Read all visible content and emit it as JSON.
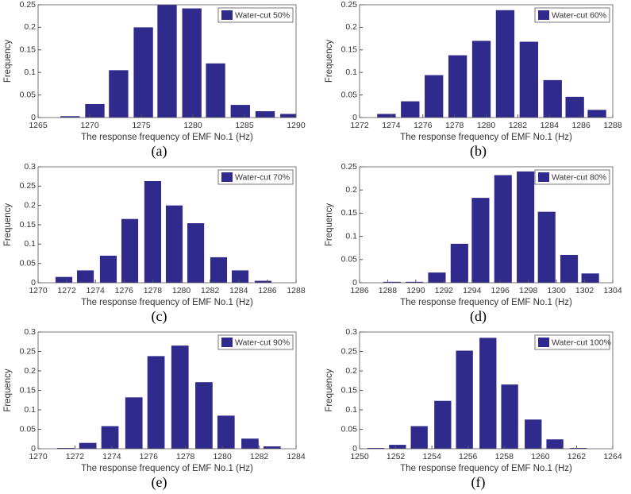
{
  "chart_data": [
    {
      "type": "bar",
      "caption": "(a)",
      "xlabel": "The response frequency of EMF No.1 (Hz)",
      "ylabel": "Frequency",
      "legend": "Water-cut 50%",
      "legend_loc": "upper right",
      "color": "#2f2a8c",
      "grid": false,
      "x": [
        1268.1,
        1270.5,
        1272.8,
        1275.2,
        1277.5,
        1279.9,
        1282.2,
        1284.6,
        1287.0,
        1289.4
      ],
      "values": [
        0.003,
        0.03,
        0.105,
        0.2,
        0.25,
        0.242,
        0.12,
        0.028,
        0.014,
        0.008
      ],
      "xlim": [
        1265,
        1290
      ],
      "xticks": [
        1265,
        1270,
        1275,
        1280,
        1285,
        1290
      ],
      "ylim": [
        0,
        0.25
      ],
      "yticks": [
        0,
        0.05,
        0.1,
        0.15,
        0.2,
        0.25
      ]
    },
    {
      "type": "bar",
      "caption": "(b)",
      "xlabel": "The response frequency of EMF No.1 (Hz)",
      "ylabel": "Frequency",
      "legend": "Water-cut  60%",
      "legend_loc": "upper right",
      "color": "#2f2a8c",
      "grid": false,
      "x": [
        1273.7,
        1275.2,
        1276.7,
        1278.2,
        1279.7,
        1281.2,
        1282.7,
        1284.2,
        1285.6,
        1287.0
      ],
      "values": [
        0.008,
        0.036,
        0.094,
        0.138,
        0.17,
        0.238,
        0.168,
        0.083,
        0.046,
        0.017
      ],
      "xlim": [
        1272,
        1288
      ],
      "xticks": [
        1272,
        1274,
        1276,
        1278,
        1280,
        1282,
        1284,
        1286,
        1288
      ],
      "ylim": [
        0,
        0.25
      ],
      "yticks": [
        0,
        0.05,
        0.1,
        0.15,
        0.2,
        0.25
      ]
    },
    {
      "type": "bar",
      "caption": "(c)",
      "xlabel": "The response frequency of EMF No.1 (Hz)",
      "ylabel": "Frequency",
      "legend": "Water-cut  70%",
      "legend_loc": "upper right",
      "color": "#2f2a8c",
      "grid": false,
      "x": [
        1271.8,
        1273.3,
        1274.9,
        1276.4,
        1278.0,
        1279.5,
        1281.0,
        1282.6,
        1284.1,
        1285.7
      ],
      "values": [
        0.015,
        0.032,
        0.07,
        0.165,
        0.263,
        0.2,
        0.154,
        0.066,
        0.032,
        0.005
      ],
      "xlim": [
        1270,
        1288
      ],
      "xticks": [
        1270,
        1272,
        1274,
        1276,
        1278,
        1280,
        1282,
        1284,
        1286,
        1288
      ],
      "ylim": [
        0,
        0.3
      ],
      "yticks": [
        0,
        0.05,
        0.1,
        0.15,
        0.2,
        0.25,
        0.3
      ]
    },
    {
      "type": "bar",
      "caption": "(d)",
      "xlabel": "The response frequency of EMF No.1 (Hz)",
      "ylabel": "Frequency",
      "legend": "Water-cut 80%",
      "legend_loc": "upper right",
      "color": "#2f2a8c",
      "grid": false,
      "x": [
        1288.3,
        1289.9,
        1291.5,
        1293.1,
        1294.6,
        1296.2,
        1297.8,
        1299.3,
        1300.9,
        1302.4
      ],
      "values": [
        0.002,
        0.002,
        0.022,
        0.084,
        0.183,
        0.232,
        0.24,
        0.153,
        0.06,
        0.02
      ],
      "xlim": [
        1286,
        1304
      ],
      "xticks": [
        1286,
        1288,
        1290,
        1292,
        1294,
        1296,
        1298,
        1300,
        1302,
        1304
      ],
      "ylim": [
        0,
        0.25
      ],
      "yticks": [
        0,
        0.05,
        0.1,
        0.15,
        0.2,
        0.25
      ]
    },
    {
      "type": "bar",
      "caption": "(e)",
      "xlabel": "The response frequency of EMF No.1 (Hz)",
      "ylabel": "Frequency",
      "legend": "Water-cut 90%",
      "legend_loc": "upper right",
      "color": "#2f2a8c",
      "grid": false,
      "x": [
        1271.5,
        1272.7,
        1273.9,
        1275.2,
        1276.4,
        1277.7,
        1279.0,
        1280.2,
        1281.5,
        1282.7
      ],
      "values": [
        0.002,
        0.015,
        0.058,
        0.132,
        0.238,
        0.265,
        0.171,
        0.085,
        0.026,
        0.006
      ],
      "xlim": [
        1270,
        1284
      ],
      "xticks": [
        1270,
        1272,
        1274,
        1276,
        1278,
        1280,
        1282,
        1284
      ],
      "ylim": [
        0,
        0.3
      ],
      "yticks": [
        0,
        0.05,
        0.1,
        0.15,
        0.2,
        0.25,
        0.3
      ]
    },
    {
      "type": "bar",
      "caption": "(f)",
      "xlabel": "The response frequency of EMF No.1 (Hz)",
      "ylabel": "Frequency",
      "legend": "Water-cut 100%",
      "legend_loc": "upper right",
      "color": "#2f2a8c",
      "grid": false,
      "x": [
        1250.9,
        1252.1,
        1253.3,
        1254.6,
        1255.8,
        1257.1,
        1258.3,
        1259.6,
        1260.8,
        1262.1
      ],
      "values": [
        0.002,
        0.01,
        0.058,
        0.123,
        0.252,
        0.285,
        0.165,
        0.075,
        0.024,
        0.002
      ],
      "xlim": [
        1250,
        1264
      ],
      "xticks": [
        1250,
        1252,
        1254,
        1256,
        1258,
        1260,
        1262,
        1264
      ],
      "ylim": [
        0,
        0.3
      ],
      "yticks": [
        0,
        0.05,
        0.1,
        0.15,
        0.2,
        0.25,
        0.3
      ]
    }
  ]
}
